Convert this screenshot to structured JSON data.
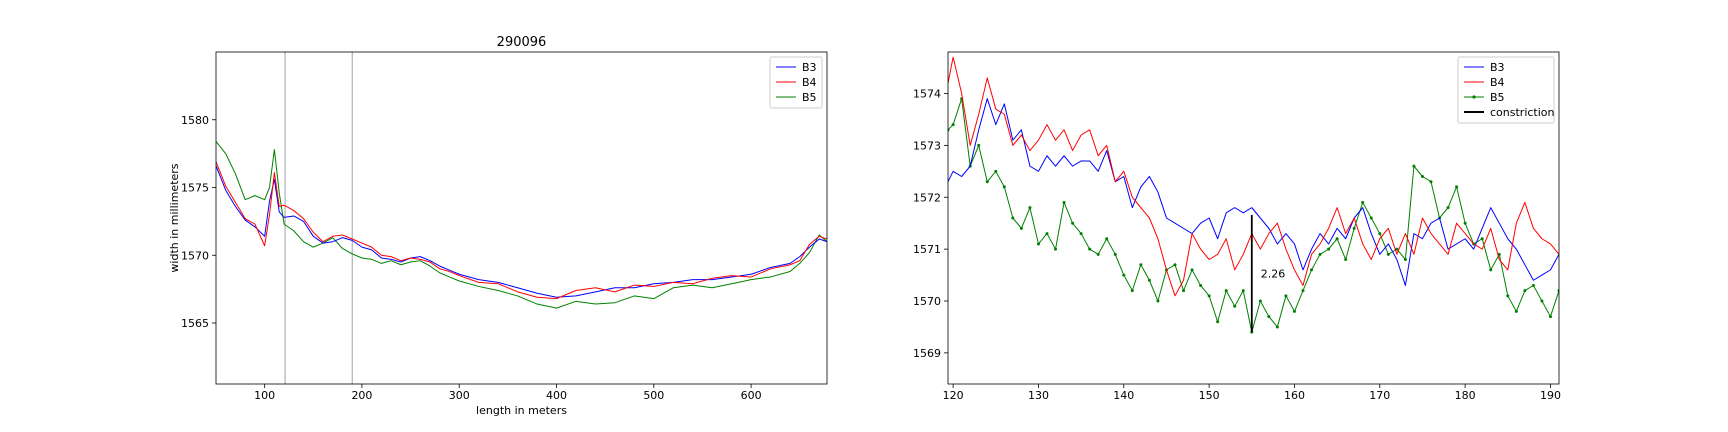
{
  "chart_data": [
    {
      "type": "line",
      "title": "290096",
      "xlabel": "length in meters",
      "ylabel": "width in millimeters",
      "xlim": [
        50,
        678
      ],
      "ylim": [
        1560.5,
        1585
      ],
      "xticks": [
        100,
        200,
        300,
        400,
        500,
        600
      ],
      "yticks": [
        1565,
        1570,
        1575,
        1580
      ],
      "vlines": [
        121,
        190
      ],
      "legend_position": "upper right",
      "series": [
        {
          "name": "B3",
          "color": "#0000ff",
          "x": [
            50,
            60,
            70,
            80,
            90,
            100,
            105,
            110,
            115,
            120,
            130,
            140,
            150,
            160,
            170,
            180,
            190,
            200,
            210,
            220,
            230,
            240,
            250,
            260,
            270,
            280,
            290,
            300,
            320,
            340,
            360,
            380,
            400,
            420,
            440,
            460,
            480,
            500,
            520,
            540,
            560,
            580,
            600,
            620,
            640,
            650,
            660,
            670,
            678
          ],
          "y": [
            1576.6,
            1574.8,
            1573.6,
            1572.6,
            1572.1,
            1571.4,
            1574.0,
            1575.6,
            1573.2,
            1572.8,
            1572.9,
            1572.5,
            1571.4,
            1570.9,
            1571.0,
            1571.3,
            1571.1,
            1570.6,
            1570.4,
            1569.8,
            1569.7,
            1569.5,
            1569.8,
            1569.9,
            1569.6,
            1569.2,
            1568.9,
            1568.6,
            1568.2,
            1568.0,
            1567.6,
            1567.2,
            1566.9,
            1567.0,
            1567.3,
            1567.6,
            1567.6,
            1567.9,
            1568.0,
            1568.2,
            1568.2,
            1568.4,
            1568.6,
            1569.1,
            1569.4,
            1569.9,
            1570.6,
            1571.2,
            1571.0
          ]
        },
        {
          "name": "B4",
          "color": "#ff0000",
          "x": [
            50,
            60,
            70,
            80,
            90,
            100,
            105,
            110,
            115,
            120,
            130,
            140,
            150,
            160,
            170,
            180,
            190,
            200,
            210,
            220,
            230,
            240,
            250,
            260,
            270,
            280,
            290,
            300,
            320,
            340,
            360,
            380,
            400,
            420,
            440,
            460,
            480,
            500,
            520,
            540,
            560,
            580,
            600,
            620,
            640,
            650,
            660,
            670,
            678
          ],
          "y": [
            1576.9,
            1575.1,
            1573.9,
            1572.7,
            1572.3,
            1570.7,
            1573.0,
            1576.1,
            1573.6,
            1573.7,
            1573.3,
            1572.7,
            1571.7,
            1571.0,
            1571.4,
            1571.5,
            1571.2,
            1570.9,
            1570.6,
            1570.0,
            1569.9,
            1569.6,
            1569.8,
            1569.7,
            1569.5,
            1569.0,
            1568.8,
            1568.5,
            1568.0,
            1567.9,
            1567.3,
            1566.9,
            1566.8,
            1567.4,
            1567.6,
            1567.3,
            1567.8,
            1567.7,
            1568.0,
            1567.9,
            1568.3,
            1568.5,
            1568.4,
            1569.0,
            1569.3,
            1569.6,
            1570.8,
            1571.4,
            1571.2
          ]
        },
        {
          "name": "B5",
          "color": "#008000",
          "x": [
            50,
            60,
            70,
            80,
            90,
            100,
            105,
            110,
            115,
            120,
            130,
            140,
            150,
            160,
            170,
            180,
            190,
            200,
            210,
            220,
            230,
            240,
            250,
            260,
            270,
            280,
            290,
            300,
            320,
            340,
            360,
            380,
            400,
            420,
            440,
            460,
            480,
            500,
            520,
            540,
            560,
            580,
            600,
            620,
            640,
            650,
            660,
            670,
            678
          ],
          "y": [
            1578.4,
            1577.5,
            1576.0,
            1574.1,
            1574.4,
            1574.1,
            1575.0,
            1577.8,
            1574.6,
            1572.3,
            1571.8,
            1571.0,
            1570.6,
            1570.9,
            1571.3,
            1570.5,
            1570.1,
            1569.8,
            1569.7,
            1569.4,
            1569.6,
            1569.3,
            1569.5,
            1569.6,
            1569.2,
            1568.7,
            1568.4,
            1568.1,
            1567.7,
            1567.4,
            1567.0,
            1566.4,
            1566.1,
            1566.6,
            1566.4,
            1566.5,
            1567.0,
            1566.8,
            1567.6,
            1567.8,
            1567.6,
            1567.9,
            1568.2,
            1568.4,
            1568.8,
            1569.4,
            1570.2,
            1571.5,
            1571.0
          ]
        }
      ]
    },
    {
      "type": "line",
      "title": "",
      "xlabel": "",
      "ylabel": "",
      "xlim": [
        119.4,
        191
      ],
      "ylim": [
        1568.4,
        1574.8
      ],
      "xticks": [
        120,
        130,
        140,
        150,
        160,
        170,
        180,
        190
      ],
      "yticks": [
        1569,
        1570,
        1571,
        1572,
        1573,
        1574
      ],
      "legend_position": "upper right",
      "series": [
        {
          "name": "B3",
          "color": "#0000ff",
          "x": [
            119.4,
            120,
            121,
            122,
            123,
            124,
            125,
            126,
            127,
            128,
            129,
            130,
            131,
            132,
            133,
            134,
            135,
            136,
            137,
            138,
            139,
            140,
            141,
            142,
            143,
            144,
            145,
            146,
            147,
            148,
            149,
            150,
            151,
            152,
            153,
            154,
            155,
            156,
            157,
            158,
            159,
            160,
            161,
            162,
            163,
            164,
            165,
            166,
            167,
            168,
            169,
            170,
            171,
            172,
            173,
            174,
            175,
            176,
            177,
            178,
            179,
            180,
            181,
            182,
            183,
            184,
            185,
            186,
            187,
            188,
            189,
            190,
            191
          ],
          "y": [
            1572.3,
            1572.5,
            1572.4,
            1572.6,
            1573.3,
            1573.9,
            1573.4,
            1573.8,
            1573.1,
            1573.3,
            1572.6,
            1572.5,
            1572.8,
            1572.6,
            1572.8,
            1572.6,
            1572.7,
            1572.7,
            1572.5,
            1572.9,
            1572.3,
            1572.4,
            1571.8,
            1572.2,
            1572.4,
            1572.1,
            1571.6,
            1571.5,
            1571.4,
            1571.3,
            1571.5,
            1571.6,
            1571.2,
            1571.7,
            1571.8,
            1571.7,
            1571.8,
            1571.6,
            1571.4,
            1571.1,
            1571.3,
            1571.1,
            1570.6,
            1571.0,
            1571.3,
            1571.1,
            1571.4,
            1571.2,
            1571.6,
            1571.8,
            1571.3,
            1570.9,
            1571.1,
            1570.8,
            1570.3,
            1571.3,
            1571.2,
            1571.5,
            1571.6,
            1571.0,
            1571.1,
            1571.2,
            1571.0,
            1571.4,
            1571.8,
            1571.5,
            1571.2,
            1571.0,
            1570.7,
            1570.4,
            1570.5,
            1570.6,
            1570.9
          ]
        },
        {
          "name": "B4",
          "color": "#ff0000",
          "x": [
            119.4,
            120,
            121,
            122,
            123,
            124,
            125,
            126,
            127,
            128,
            129,
            130,
            131,
            132,
            133,
            134,
            135,
            136,
            137,
            138,
            139,
            140,
            141,
            142,
            143,
            144,
            145,
            146,
            147,
            148,
            149,
            150,
            151,
            152,
            153,
            154,
            155,
            156,
            157,
            158,
            159,
            160,
            161,
            162,
            163,
            164,
            165,
            166,
            167,
            168,
            169,
            170,
            171,
            172,
            173,
            174,
            175,
            176,
            177,
            178,
            179,
            180,
            181,
            182,
            183,
            184,
            185,
            186,
            187,
            188,
            189,
            190,
            191
          ],
          "y": [
            1574.2,
            1574.7,
            1574.0,
            1573.0,
            1573.6,
            1574.3,
            1573.7,
            1573.6,
            1573.0,
            1573.2,
            1572.9,
            1573.1,
            1573.4,
            1573.1,
            1573.3,
            1572.9,
            1573.2,
            1573.3,
            1572.8,
            1573.0,
            1572.3,
            1572.5,
            1572.0,
            1571.8,
            1571.6,
            1571.2,
            1570.6,
            1570.1,
            1570.4,
            1571.3,
            1571.0,
            1570.8,
            1570.9,
            1571.2,
            1570.6,
            1570.9,
            1571.3,
            1571.0,
            1571.3,
            1571.5,
            1571.0,
            1570.6,
            1570.3,
            1570.9,
            1571.1,
            1571.4,
            1571.8,
            1571.3,
            1571.6,
            1571.1,
            1570.8,
            1571.2,
            1571.4,
            1570.9,
            1571.3,
            1570.9,
            1571.6,
            1571.3,
            1571.1,
            1570.9,
            1571.5,
            1571.3,
            1571.1,
            1571.0,
            1571.4,
            1570.8,
            1570.6,
            1571.5,
            1571.9,
            1571.4,
            1571.2,
            1571.1,
            1570.9
          ]
        },
        {
          "name": "B5",
          "color": "#008000",
          "x": [
            119.4,
            120,
            121,
            122,
            123,
            124,
            125,
            126,
            127,
            128,
            129,
            130,
            131,
            132,
            133,
            134,
            135,
            136,
            137,
            138,
            139,
            140,
            141,
            142,
            143,
            144,
            145,
            146,
            147,
            148,
            149,
            150,
            151,
            152,
            153,
            154,
            155,
            156,
            157,
            158,
            159,
            160,
            161,
            162,
            163,
            164,
            165,
            166,
            167,
            168,
            169,
            170,
            171,
            172,
            173,
            174,
            175,
            176,
            177,
            178,
            179,
            180,
            181,
            182,
            183,
            184,
            185,
            186,
            187,
            188,
            189,
            190,
            191
          ],
          "y": [
            1573.3,
            1573.4,
            1573.9,
            1572.6,
            1573.0,
            1572.3,
            1572.5,
            1572.2,
            1571.6,
            1571.4,
            1571.8,
            1571.1,
            1571.3,
            1571.0,
            1571.9,
            1571.5,
            1571.3,
            1571.0,
            1570.9,
            1571.2,
            1570.9,
            1570.5,
            1570.2,
            1570.7,
            1570.4,
            1570.0,
            1570.6,
            1570.7,
            1570.2,
            1570.6,
            1570.3,
            1570.1,
            1569.6,
            1570.2,
            1569.9,
            1570.2,
            1569.4,
            1570.0,
            1569.7,
            1569.5,
            1570.1,
            1569.8,
            1570.2,
            1570.6,
            1570.9,
            1571.0,
            1571.2,
            1570.8,
            1571.4,
            1571.9,
            1571.6,
            1571.3,
            1570.9,
            1571.0,
            1570.8,
            1572.6,
            1572.4,
            1572.3,
            1571.6,
            1571.8,
            1572.2,
            1571.5,
            1571.1,
            1571.2,
            1570.6,
            1570.9,
            1570.1,
            1569.8,
            1570.2,
            1570.3,
            1570.0,
            1569.7,
            1570.2
          ]
        }
      ],
      "constriction": {
        "name": "constriction",
        "color": "#000000",
        "x": 155,
        "y_from": 1569.4,
        "y_to": 1571.66,
        "label": "2.26"
      }
    }
  ]
}
